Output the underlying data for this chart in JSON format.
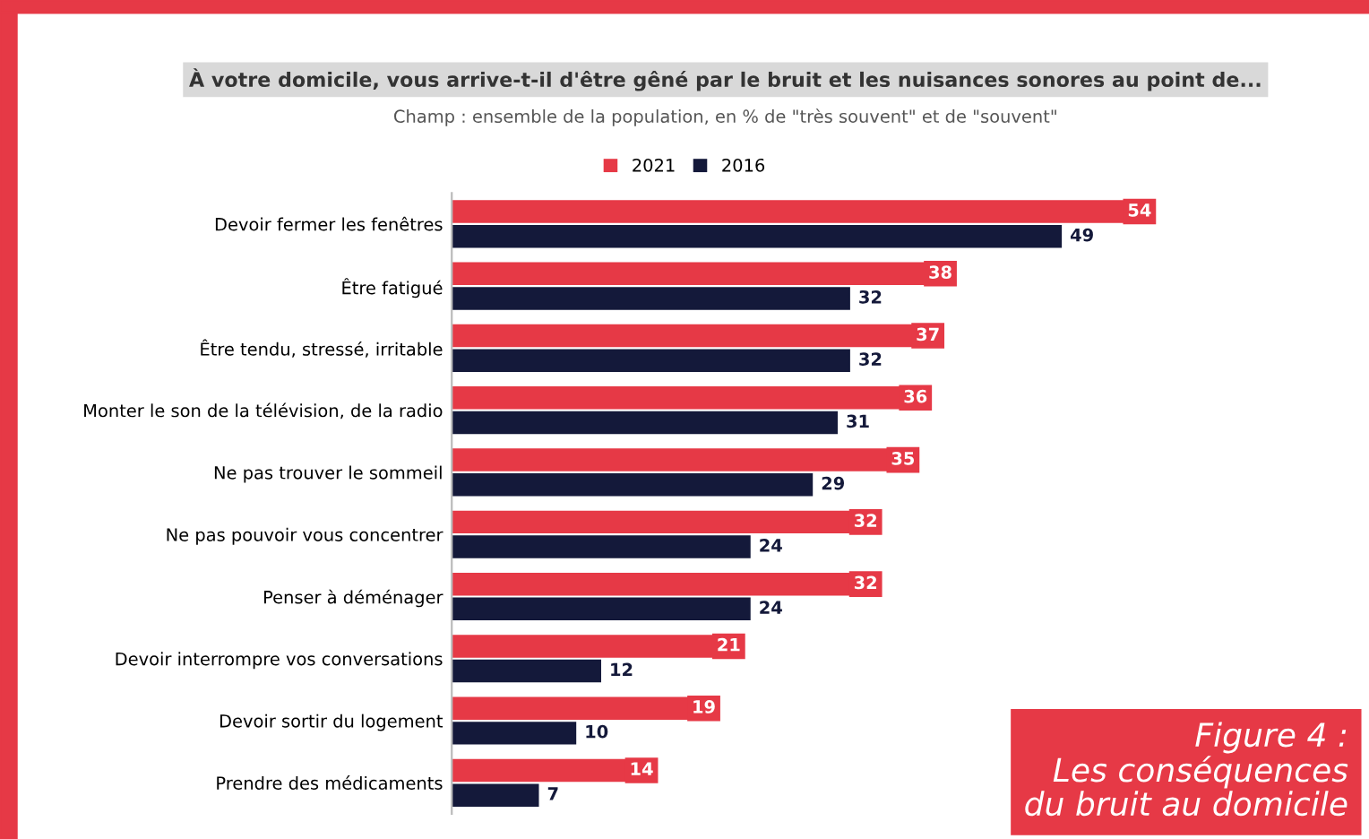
{
  "chart_data": {
    "type": "bar",
    "orientation": "horizontal",
    "title": "À votre domicile, vous arrive-t-il d'être gêné par le bruit et les nuisances sonores au point de...",
    "subtitle": "Champ : ensemble de la population, en % de \"très souvent\" et de \"souvent\"",
    "categories": [
      "Devoir fermer les fenêtres",
      "Être fatigué",
      "Être tendu, stressé, irritable",
      "Monter le son de la télévision, de la radio",
      "Ne pas trouver le sommeil",
      "Ne pas pouvoir vous concentrer",
      "Penser à déménager",
      "Devoir interrompre vos conversations",
      "Devoir sortir du logement",
      "Prendre des médicaments"
    ],
    "series": [
      {
        "name": "2021",
        "color": "#e63946",
        "values": [
          54,
          38,
          37,
          36,
          35,
          32,
          32,
          21,
          19,
          14
        ]
      },
      {
        "name": "2016",
        "color": "#14193a",
        "values": [
          49,
          32,
          32,
          31,
          29,
          24,
          24,
          12,
          10,
          7
        ]
      }
    ],
    "tick_labels": "y",
    "data_labels": true,
    "legend": "top",
    "grid": false,
    "annotations": [
      "Figure 4 :\nLes conséquences\ndu bruit au domicile"
    ]
  }
}
